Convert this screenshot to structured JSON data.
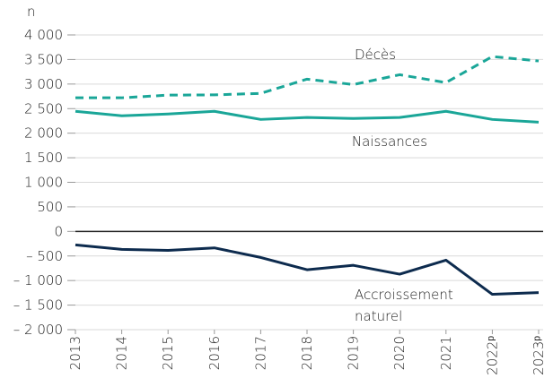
{
  "chart_data": {
    "type": "line",
    "y_axis_label": "n",
    "categories": [
      "2013",
      "2014",
      "2015",
      "2016",
      "2017",
      "2018",
      "2019",
      "2020",
      "2021",
      "2022ᵖ",
      "2023ᵖ"
    ],
    "series": [
      {
        "name": "Décès",
        "color": "#1aa698",
        "style": "dashed",
        "values": [
          2720,
          2720,
          2775,
          2780,
          2810,
          3100,
          2990,
          3190,
          3030,
          3560,
          3470
        ]
      },
      {
        "name": "Naissances",
        "color": "#1aa698",
        "style": "solid",
        "values": [
          2445,
          2355,
          2390,
          2445,
          2280,
          2320,
          2300,
          2320,
          2445,
          2280,
          2225
        ]
      },
      {
        "name": "Accroissement naturel",
        "color": "#0d2b4e",
        "style": "solid",
        "values": [
          -275,
          -365,
          -385,
          -335,
          -530,
          -780,
          -690,
          -870,
          -585,
          -1280,
          -1245
        ]
      }
    ],
    "annotations": [
      [
        "Décès"
      ],
      [
        "Naissances"
      ],
      [
        "Accroissement",
        "naturel"
      ]
    ],
    "ylim": [
      -2000,
      4000
    ],
    "yticks": [
      {
        "value": 4000,
        "label": "4 000"
      },
      {
        "value": 3500,
        "label": "3 500"
      },
      {
        "value": 3000,
        "label": "3 000"
      },
      {
        "value": 2500,
        "label": "2 500"
      },
      {
        "value": 2000,
        "label": "2 000"
      },
      {
        "value": 1500,
        "label": "1 500"
      },
      {
        "value": 1000,
        "label": "1 000"
      },
      500,
      0,
      {
        "value": -500,
        "label": "– 500"
      },
      {
        "value": -1000,
        "label": "– 1 000"
      },
      {
        "value": -1500,
        "label": "– 1 500"
      },
      {
        "value": -2000,
        "label": "– 2 000"
      }
    ],
    "grid": true
  }
}
